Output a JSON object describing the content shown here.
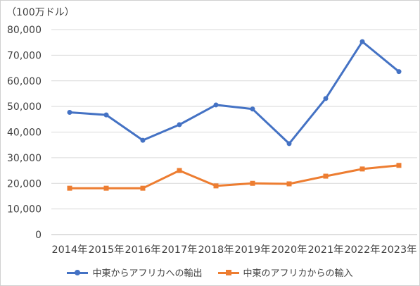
{
  "chart_data": {
    "type": "line",
    "unit_label": "（100万ドル）",
    "categories": [
      "2014年",
      "2015年",
      "2016年",
      "2017年",
      "2018年",
      "2019年",
      "2020年",
      "2021年",
      "2022年",
      "2023年"
    ],
    "ylim": [
      0,
      80000
    ],
    "yticks": [
      0,
      10000,
      20000,
      30000,
      40000,
      50000,
      60000,
      70000,
      80000
    ],
    "ytick_labels": [
      "0",
      "10,000",
      "20,000",
      "30,000",
      "40,000",
      "50,000",
      "60,000",
      "70,000",
      "80,000"
    ],
    "grid": true,
    "legend_position": "bottom",
    "series": [
      {
        "name": "中東からアフリカへの輸出",
        "color": "#4472c4",
        "marker": "circle",
        "values": [
          47700,
          46700,
          36800,
          42900,
          50600,
          49000,
          35500,
          53100,
          75300,
          63600
        ]
      },
      {
        "name": "中東のアフリカからの輸入",
        "color": "#ed7d31",
        "marker": "square",
        "values": [
          18100,
          18100,
          18100,
          25000,
          19000,
          20000,
          19800,
          22800,
          25600,
          27000
        ]
      }
    ]
  }
}
